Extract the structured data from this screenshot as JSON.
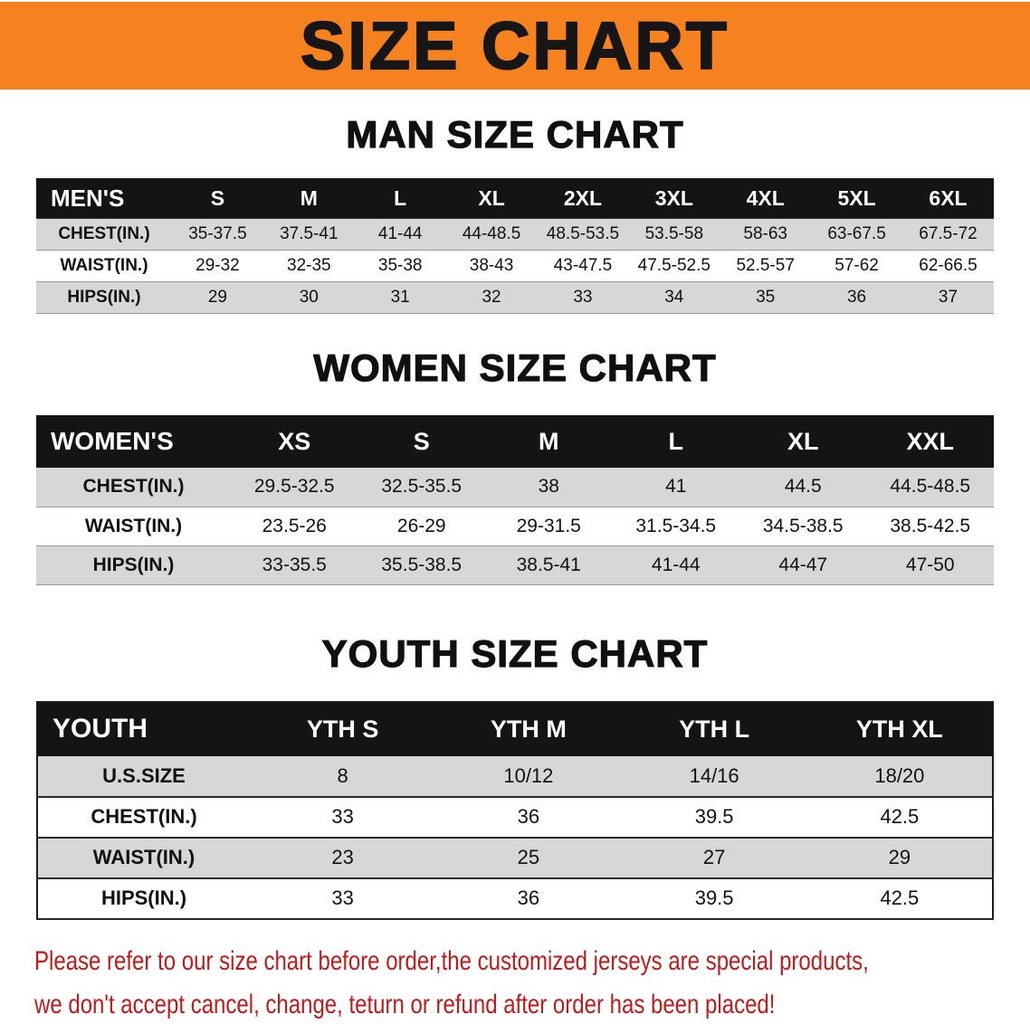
{
  "banner": {
    "title": "SIZE CHART"
  },
  "sections": [
    {
      "heading": "MAN SIZE CHART",
      "table": {
        "label": "MEN'S",
        "columns": [
          "S",
          "M",
          "L",
          "XL",
          "2XL",
          "3XL",
          "4XL",
          "5XL",
          "6XL"
        ],
        "rows": [
          {
            "label": "CHEST(IN.)",
            "values": [
              "35-37.5",
              "37.5-41",
              "41-44",
              "44-48.5",
              "48.5-53.5",
              "53.5-58",
              "58-63",
              "63-67.5",
              "67.5-72"
            ]
          },
          {
            "label": "WAIST(IN.)",
            "values": [
              "29-32",
              "32-35",
              "35-38",
              "38-43",
              "43-47.5",
              "47.5-52.5",
              "52.5-57",
              "57-62",
              "62-66.5"
            ]
          },
          {
            "label": "HIPS(IN.)",
            "values": [
              "29",
              "30",
              "31",
              "32",
              "33",
              "34",
              "35",
              "36",
              "37"
            ]
          }
        ]
      }
    },
    {
      "heading": "WOMEN SIZE CHART",
      "table": {
        "label": "WOMEN'S",
        "columns": [
          "XS",
          "S",
          "M",
          "L",
          "XL",
          "XXL"
        ],
        "rows": [
          {
            "label": "CHEST(IN.)",
            "values": [
              "29.5-32.5",
              "32.5-35.5",
              "38",
              "41",
              "44.5",
              "44.5-48.5"
            ]
          },
          {
            "label": "WAIST(IN.)",
            "values": [
              "23.5-26",
              "26-29",
              "29-31.5",
              "31.5-34.5",
              "34.5-38.5",
              "38.5-42.5"
            ]
          },
          {
            "label": "HIPS(IN.)",
            "values": [
              "33-35.5",
              "35.5-38.5",
              "38.5-41",
              "41-44",
              "44-47",
              "47-50"
            ]
          }
        ]
      }
    },
    {
      "heading": "YOUTH SIZE CHART",
      "table": {
        "label": "YOUTH",
        "columns": [
          "YTH S",
          "YTH M",
          "YTH L",
          "YTH XL"
        ],
        "rows": [
          {
            "label": "U.S.SIZE",
            "values": [
              "8",
              "10/12",
              "14/16",
              "18/20"
            ]
          },
          {
            "label": "CHEST(IN.)",
            "values": [
              "33",
              "36",
              "39.5",
              "42.5"
            ]
          },
          {
            "label": "WAIST(IN.)",
            "values": [
              "23",
              "25",
              "27",
              "29"
            ]
          },
          {
            "label": "HIPS(IN.)",
            "values": [
              "33",
              "36",
              "39.5",
              "42.5"
            ]
          }
        ]
      }
    }
  ],
  "footer": {
    "line1": "Please refer to our size chart before order,the customized jerseys are special products,",
    "line2": "we don't accept cancel, change, teturn or refund after order has been placed!"
  },
  "colors": {
    "banner_background": "#F5821E",
    "banner_text": "#161616",
    "table_header_background": "#141414",
    "table_header_text": "#FFFFFF",
    "row_alt_background": "#D7D7D7",
    "footer_text": "#C01A1A"
  }
}
